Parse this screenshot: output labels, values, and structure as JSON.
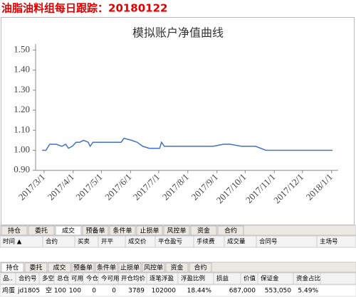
{
  "header": {
    "title": "油脂油料组每日跟踪：20180122"
  },
  "chart_data": {
    "type": "line",
    "title": "模拟账户净值曲线",
    "color": "#4472c4",
    "x": [
      "2017/2/27",
      "2017/3/3",
      "2017/3/7",
      "2017/3/14",
      "2017/3/20",
      "2017/3/24",
      "2017/3/27",
      "2017/3/31",
      "2017/4/4",
      "2017/4/8",
      "2017/4/12",
      "2017/4/17",
      "2017/4/19",
      "2017/4/22",
      "2017/4/28",
      "2017/5/22",
      "2017/5/25",
      "2017/6/2",
      "2017/6/8",
      "2017/6/14",
      "2017/6/21",
      "2017/7/2",
      "2017/7/4",
      "2017/7/7",
      "2017/8/28",
      "2017/9/8",
      "2017/9/15",
      "2017/9/27",
      "2017/10/12",
      "2017/10/23",
      "2017/12/11",
      "2017/12/15",
      "2018/1/2"
    ],
    "values": [
      1.0,
      1.0,
      1.03,
      1.03,
      1.02,
      1.03,
      1.01,
      1.02,
      1.04,
      1.04,
      1.05,
      1.04,
      1.02,
      1.04,
      1.04,
      1.04,
      1.06,
      1.05,
      1.04,
      1.02,
      1.01,
      1.01,
      1.04,
      1.02,
      1.02,
      1.03,
      1.03,
      1.02,
      1.02,
      1.0,
      1.0,
      1.0,
      1.0
    ],
    "xlim": [
      "2017/2/20",
      "2018/1/8"
    ],
    "xticks": [
      "2017/3/1",
      "2017/4/1",
      "2017/5/1",
      "2017/6/1",
      "2017/7/1",
      "2017/8/1",
      "2017/9/1",
      "2017/10/1",
      "2017/11/1",
      "2017/12/1",
      "2018/1/1"
    ],
    "ylim": [
      0.86,
      1.53
    ],
    "yticks": [
      {
        "value": 0.9,
        "label": "0.90"
      },
      {
        "value": 1.0,
        "label": "1.00"
      },
      {
        "value": 1.1,
        "label": "1.10"
      },
      {
        "value": 1.2,
        "label": "1.20"
      },
      {
        "value": 1.3,
        "label": "1.30"
      },
      {
        "value": 1.4,
        "label": "1.40"
      },
      {
        "value": 1.5,
        "label": "1.50"
      }
    ]
  },
  "trades_panel": {
    "tabs": [
      "持仓",
      "委托",
      "成交",
      "预备单",
      "条件单",
      "止损单",
      "风控单",
      "资金",
      "合约"
    ],
    "selected_tab": 2,
    "columns": [
      "时间 ▲",
      "合约",
      "买卖",
      "开平",
      "成交价",
      "平仓盈亏",
      "手续费",
      "成交量",
      "合同号",
      "主场号"
    ]
  },
  "positions_panel": {
    "tabs": [
      "持仓",
      "委托",
      "成交",
      "预备单",
      "条件单",
      "止损单",
      "风控单",
      "资金",
      "合约"
    ],
    "selected_tab": 0,
    "columns": [
      "品..",
      "合约号",
      "多空",
      "总仓",
      "可用",
      "今仓",
      "今可用",
      "开仓均价",
      "逐笔浮盈",
      "浮盈比例",
      "损益",
      "价值",
      "保证金",
      "资金占比"
    ],
    "rows": [
      [
        "鸡蛋",
        "jd1805",
        "空",
        "100",
        "100",
        "0",
        "0",
        "3789",
        "102000",
        "18.44%",
        null,
        "687,000",
        "553,050",
        "5.49%"
      ]
    ]
  }
}
